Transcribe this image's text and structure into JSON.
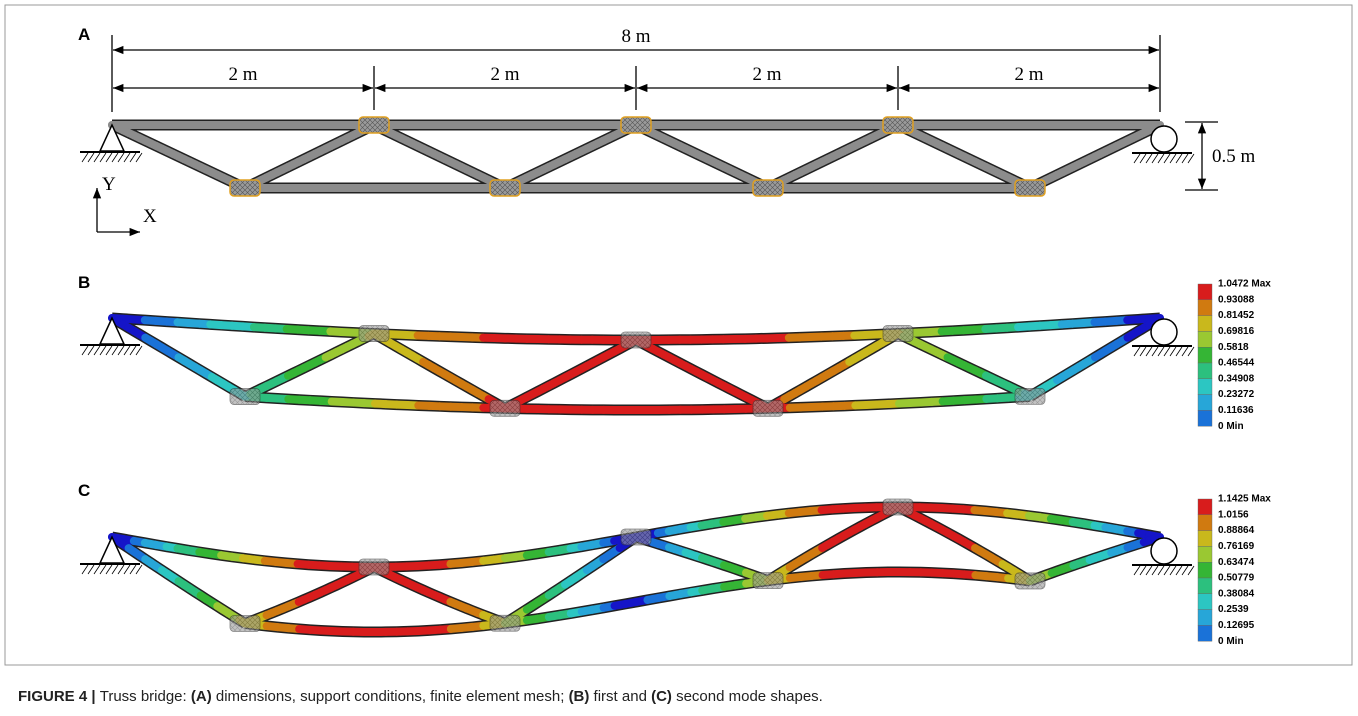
{
  "panel_labels": [
    "A",
    "B",
    "C"
  ],
  "dimensions": {
    "total": "8 m",
    "bays": [
      "2 m",
      "2 m",
      "2 m",
      "2 m"
    ],
    "height": "0.5 m"
  },
  "axes": {
    "y": "Y",
    "x": "X"
  },
  "legend_b": [
    "1.0472 Max",
    "0.93088",
    "0.81452",
    "0.69816",
    "0.5818",
    "0.46544",
    "0.34908",
    "0.23272",
    "0.11636",
    "0 Min"
  ],
  "legend_c": [
    "1.1425 Max",
    "1.0156",
    "0.88864",
    "0.76169",
    "0.63474",
    "0.50779",
    "0.38084",
    "0.2539",
    "0.12695",
    "0 Min"
  ],
  "caption": [
    {
      "text": "FIGURE 4 | ",
      "bold": true
    },
    {
      "text": "Truss bridge: "
    },
    {
      "text": "(A)",
      "bold": true
    },
    {
      "text": " dimensions, support conditions, finite element mesh; "
    },
    {
      "text": "(B)",
      "bold": true
    },
    {
      "text": " first and "
    },
    {
      "text": "(C)",
      "bold": true
    },
    {
      "text": " second mode shapes."
    }
  ]
}
